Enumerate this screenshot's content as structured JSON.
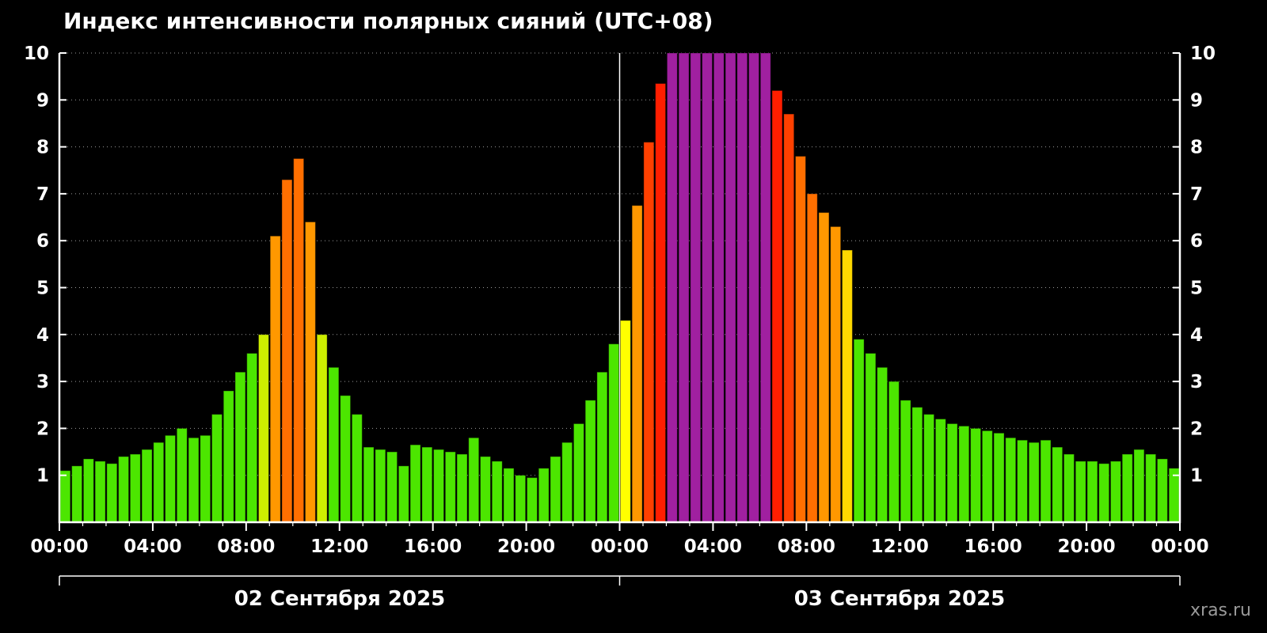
{
  "watermark": "xras.ru",
  "chart_data": {
    "type": "bar",
    "title": "Индекс интенсивности полярных сияний (UTC+08)",
    "timezone": "UTC+08",
    "interval_minutes": 30,
    "ylim": [
      0,
      10
    ],
    "y_ticks": [
      1,
      2,
      3,
      4,
      5,
      6,
      7,
      8,
      9,
      10
    ],
    "x_tick_labels": [
      "00:00",
      "04:00",
      "08:00",
      "12:00",
      "16:00",
      "20:00",
      "00:00",
      "04:00",
      "08:00",
      "12:00",
      "16:00",
      "20:00",
      "00:00"
    ],
    "grid": true,
    "legend": "none",
    "days": [
      {
        "date_label": "02 Сентября 2025",
        "values": [
          1.1,
          1.2,
          1.35,
          1.3,
          1.25,
          1.4,
          1.45,
          1.55,
          1.7,
          1.85,
          2.0,
          1.8,
          1.85,
          2.3,
          2.8,
          3.2,
          3.6,
          4.0,
          6.1,
          7.3,
          7.75,
          6.4,
          4.0,
          3.3,
          2.7,
          2.3,
          1.6,
          1.55,
          1.5,
          1.2,
          1.65,
          1.6,
          1.55,
          1.5,
          1.45,
          1.8,
          1.4,
          1.3,
          1.15,
          1.0,
          0.95,
          1.15,
          1.4,
          1.7,
          2.1,
          2.6,
          3.2,
          3.8
        ]
      },
      {
        "date_label": "03 Сентября 2025",
        "values": [
          4.3,
          6.75,
          8.1,
          9.35,
          10,
          10,
          10,
          10,
          10,
          10,
          10,
          10,
          10,
          9.2,
          8.7,
          7.8,
          7.0,
          6.6,
          6.3,
          5.8,
          3.9,
          3.6,
          3.3,
          3.0,
          2.6,
          2.45,
          2.3,
          2.2,
          2.1,
          2.05,
          2.0,
          1.95,
          1.9,
          1.8,
          1.75,
          1.7,
          1.75,
          1.6,
          1.45,
          1.3,
          1.3,
          1.25,
          1.3,
          1.45,
          1.55,
          1.45,
          1.35,
          1.15
        ]
      }
    ],
    "thresholds": [
      {
        "min": 9.9,
        "color": "purple"
      },
      {
        "min": 9.0,
        "color": "red"
      },
      {
        "min": 8.0,
        "color": "red_orange"
      },
      {
        "min": 7.0,
        "color": "dark_orange"
      },
      {
        "min": 6.0,
        "color": "orange"
      },
      {
        "min": 5.0,
        "color": "amber"
      },
      {
        "min": 4.2,
        "color": "yellow"
      },
      {
        "min": 3.95,
        "color": "yellow_green"
      },
      {
        "min": 0,
        "color": "green"
      }
    ],
    "colors": {
      "background": "#000000",
      "axis": "#ffffff",
      "grid": "#999999",
      "text": "#ffffff",
      "watermark": "#999999",
      "palette": {
        "green": "#4ce600",
        "yellow_green": "#cdee00",
        "yellow": "#ffff00",
        "amber": "#ffd800",
        "orange": "#ff9800",
        "dark_orange": "#ff6f00",
        "red_orange": "#ff4000",
        "red": "#ff1e00",
        "purple": "#a020a0"
      }
    }
  }
}
